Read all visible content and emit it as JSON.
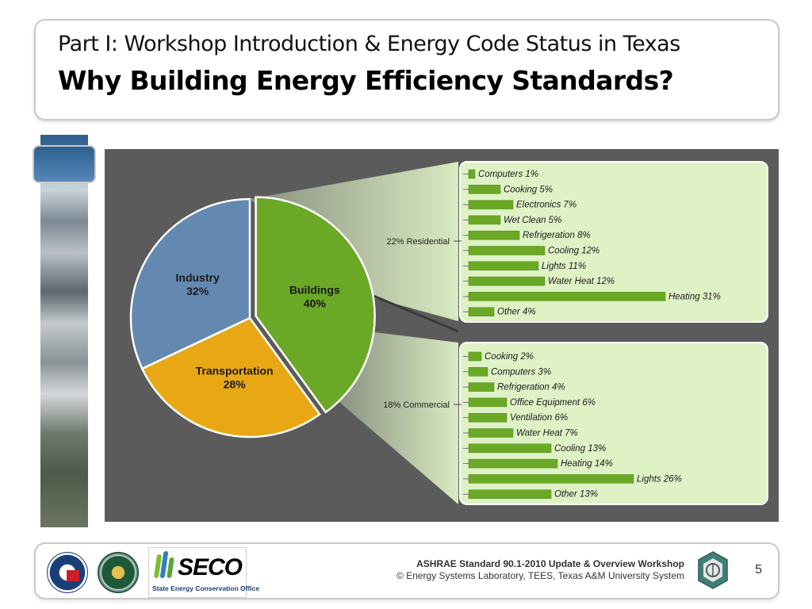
{
  "header": {
    "subtitle": "Part I:  Workshop Introduction & Energy Code Status in Texas",
    "title": "Why Building Energy Efficiency Standards?"
  },
  "footer": {
    "line1": "ASHRAE Standard 90.1-2010 Update & Overview  Workshop",
    "line2": "© Energy Systems Laboratory, TEES, Texas A&M University System",
    "page_number": "5",
    "seco_name": "SECO",
    "seco_subtitle": "State Energy Conservation Office"
  },
  "colors": {
    "industry": "#6489b1",
    "transportation": "#e8a816",
    "buildings": "#6aa826",
    "bar": "#6aa826",
    "panel": "#dff2c6",
    "chart_background": "#5b5b5b"
  },
  "chart_data": [
    {
      "type": "pie",
      "slices": [
        {
          "label": "Industry",
          "value_label": "32%",
          "value": 32
        },
        {
          "label": "Transportation",
          "value_label": "28%",
          "value": 28
        },
        {
          "label": "Buildings",
          "value_label": "40%",
          "value": 40
        }
      ]
    },
    {
      "type": "bar",
      "group_label": "22% Residential",
      "categories": [
        "Computers",
        "Cooking",
        "Electronics",
        "Wet Clean",
        "Refrigeration",
        "Cooling",
        "Lights",
        "Water Heat",
        "Heating",
        "Other"
      ],
      "values": [
        1,
        5,
        7,
        5,
        8,
        12,
        11,
        12,
        31,
        4
      ],
      "labels": [
        "Computers 1%",
        "Cooking 5%",
        "Electronics 7%",
        "Wet Clean 5%",
        "Refrigeration 8%",
        "Cooling 12%",
        "Lights 11%",
        "Water Heat 12%",
        "Heating 31%",
        "Other 4%"
      ]
    },
    {
      "type": "bar",
      "group_label": "18% Commercial",
      "categories": [
        "Cooking",
        "Computers",
        "Refrigeration",
        "Office Equipment",
        "Ventilation",
        "Water Heat",
        "Cooling",
        "Heating",
        "Lights",
        "Other"
      ],
      "values": [
        2,
        3,
        4,
        6,
        6,
        7,
        13,
        14,
        26,
        13
      ],
      "labels": [
        "Cooking 2%",
        "Computers 3%",
        "Refrigeration 4%",
        "Office Equipment 6%",
        "Ventilation 6%",
        "Water Heat 7%",
        "Cooling 13%",
        "Heating 14%",
        "Lights 26%",
        "Other 13%"
      ]
    }
  ]
}
